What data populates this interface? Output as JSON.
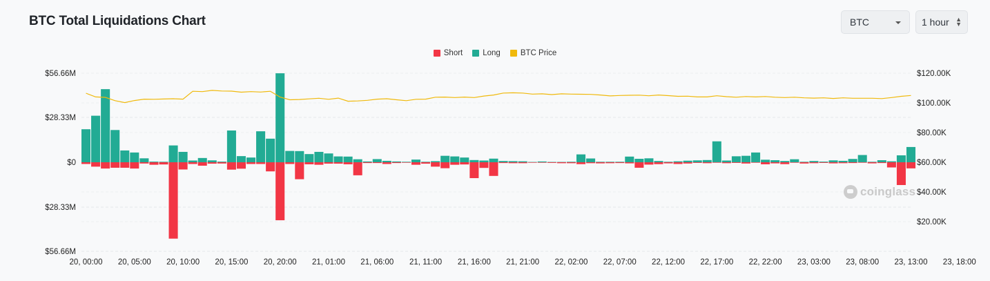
{
  "header": {
    "title": "BTC Total Liquidations Chart",
    "coin_select": "BTC",
    "interval_select": "1 hour"
  },
  "legend": [
    {
      "label": "Short",
      "color": "#f23645"
    },
    {
      "label": "Long",
      "color": "#22ab94"
    },
    {
      "label": "BTC Price",
      "color": "#f0b90b"
    }
  ],
  "watermark": "coinglass",
  "chart_data": {
    "type": "bar",
    "title": "BTC Total Liquidations Chart",
    "x_tick_labels": [
      "20, 00:00",
      "20, 05:00",
      "20, 10:00",
      "20, 15:00",
      "20, 20:00",
      "21, 01:00",
      "21, 06:00",
      "21, 11:00",
      "21, 16:00",
      "21, 21:00",
      "22, 02:00",
      "22, 07:00",
      "22, 12:00",
      "22, 17:00",
      "22, 22:00",
      "23, 03:00",
      "23, 08:00",
      "23, 13:00",
      "23, 18:00"
    ],
    "y_left_ticks": [
      "$56.66M",
      "$28.33M",
      "$0",
      "$28.33M",
      "$56.66M"
    ],
    "y_right_ticks": [
      "$120.00K",
      "$100.00K",
      "$80.00K",
      "$60.00K",
      "$40.00K",
      "$20.00K"
    ],
    "y_left_range": [
      -56.66,
      56.66
    ],
    "y_left_unit": "$M",
    "y_right_range": [
      0,
      120000
    ],
    "x_start": "20, 00:00",
    "interval": "1 hour",
    "grid": true,
    "legend_position": "top-center",
    "series": [
      {
        "name": "Long",
        "color": "#22ab94",
        "values": [
          21.0,
          29.6,
          46.5,
          20.5,
          7.5,
          6.2,
          2.5,
          0.4,
          0.3,
          10.7,
          6.6,
          1.1,
          2.7,
          1.2,
          0.4,
          20.2,
          3.9,
          3.0,
          19.7,
          15.0,
          56.6,
          7.2,
          7.1,
          5.2,
          6.6,
          5.6,
          3.7,
          3.6,
          1.9,
          0.5,
          2.0,
          0.9,
          0.5,
          0.3,
          1.7,
          0.3,
          0.7,
          4.1,
          3.7,
          3.0,
          1.4,
          1.1,
          2.3,
          0.8,
          0.7,
          0.6,
          0.2,
          0.5,
          0.2,
          0.2,
          0.3,
          5.0,
          2.4,
          0.3,
          0.3,
          0.3,
          3.6,
          2.2,
          2.5,
          0.8,
          0.3,
          0.6,
          1.0,
          1.2,
          1.4,
          13.3,
          1.1,
          3.8,
          4.1,
          6.2,
          1.6,
          1.3,
          0.8,
          1.9,
          0.3,
          0.8,
          0.4,
          1.2,
          0.9,
          2.1,
          4.6,
          0.3,
          1.3,
          0.6,
          4.4,
          9.7
        ]
      },
      {
        "name": "Short",
        "color": "#f23645",
        "values": [
          1.1,
          2.8,
          4.0,
          3.5,
          3.5,
          4.0,
          0.8,
          1.6,
          1.4,
          48.6,
          4.6,
          1.1,
          2.2,
          0.9,
          0.8,
          4.7,
          4.1,
          1.1,
          1.1,
          5.8,
          36.9,
          1.1,
          10.8,
          1.3,
          1.6,
          0.9,
          0.9,
          1.3,
          8.3,
          0.5,
          0.5,
          1.1,
          0.5,
          0.3,
          1.6,
          0.9,
          2.8,
          3.8,
          1.6,
          1.4,
          10.1,
          3.6,
          8.7,
          0.5,
          0.6,
          0.6,
          0.3,
          0.3,
          0.4,
          0.6,
          0.6,
          1.2,
          0.6,
          0.7,
          0.6,
          0.5,
          0.7,
          3.5,
          1.5,
          1.2,
          0.7,
          1.1,
          0.8,
          0.4,
          0.6,
          0.3,
          0.6,
          0.4,
          0.8,
          0.3,
          1.3,
          0.7,
          1.2,
          0.3,
          0.8,
          0.6,
          0.4,
          0.7,
          0.6,
          0.5,
          0.3,
          0.7,
          0.5,
          3.3,
          14.5,
          3.9
        ]
      },
      {
        "name": "BTC Price",
        "color": "#f0b90b",
        "values": [
          106500,
          104000,
          103700,
          101500,
          100200,
          101600,
          102500,
          102400,
          102600,
          102800,
          102500,
          107800,
          107600,
          108400,
          108000,
          107900,
          107200,
          107600,
          107300,
          107800,
          103900,
          102100,
          102300,
          102700,
          103100,
          102400,
          103200,
          101100,
          101300,
          101700,
          102500,
          102800,
          102100,
          101500,
          102400,
          102500,
          103800,
          103900,
          103600,
          103900,
          103600,
          104600,
          105300,
          106600,
          106800,
          106600,
          105900,
          106100,
          105600,
          106100,
          105900,
          105800,
          105700,
          105300,
          104700,
          105000,
          105100,
          105200,
          104800,
          105300,
          104900,
          104400,
          104500,
          104000,
          104000,
          104800,
          104200,
          103800,
          104300,
          104000,
          104300,
          103800,
          103600,
          103800,
          103400,
          103200,
          103400,
          103000,
          103400,
          103100,
          103100,
          103100,
          102900,
          103600,
          104400,
          105000
        ]
      }
    ]
  }
}
